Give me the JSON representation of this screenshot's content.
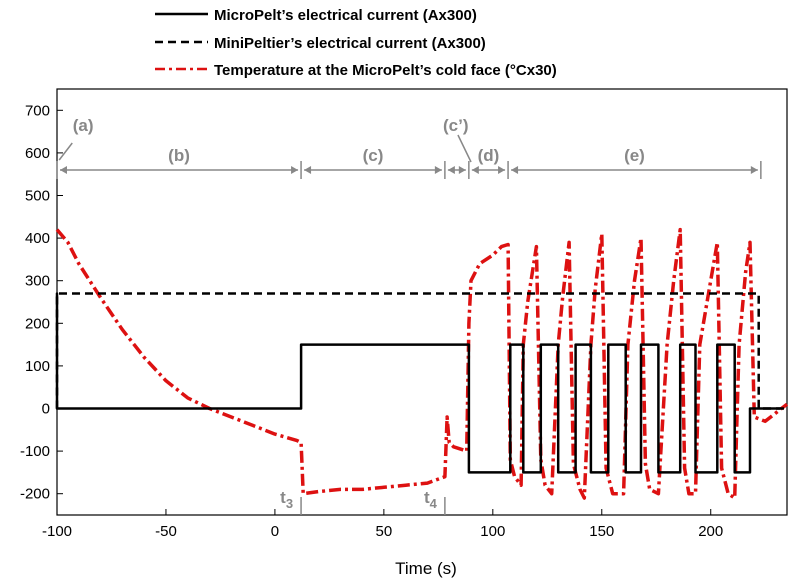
{
  "chart_data": {
    "type": "line",
    "title": "",
    "xlabel": "Time (s)",
    "ylabel": "",
    "xlim": [
      -100,
      235
    ],
    "ylim": [
      -250,
      750
    ],
    "xticks": [
      -100,
      -50,
      0,
      50,
      100,
      150,
      200
    ],
    "yticks": [
      -200,
      -100,
      0,
      100,
      200,
      300,
      400,
      500,
      600,
      700
    ],
    "xtick_labels": [
      "-100",
      "-50",
      "0",
      "50",
      "100",
      "150",
      "200"
    ],
    "ytick_labels": [
      "-200",
      "-100",
      "0",
      "100",
      "200",
      "300",
      "400",
      "500",
      "600",
      "700"
    ],
    "grid": false,
    "legend": {
      "placement": "top-outside",
      "entries": [
        {
          "label": "MicroPelt’s electrical current (Ax300)",
          "style": "solid",
          "color": "#000000"
        },
        {
          "label": "MiniPeltier’s electrical current  (Ax300)",
          "style": "dashed",
          "color": "#000000"
        },
        {
          "label": "Temperature at the MicroPelt’s cold face (°Cx30)",
          "style": "dashdot",
          "color": "#dd1111"
        }
      ]
    },
    "series": [
      {
        "name": "MicroPelt’s electrical current (Ax300)",
        "color": "#000000",
        "style": "solid",
        "x": [
          -100,
          -100,
          -100,
          12,
          12,
          89,
          89,
          108,
          108,
          114,
          114,
          122,
          122,
          130,
          130,
          138,
          138,
          145,
          145,
          153,
          153,
          161,
          161,
          168,
          168,
          176,
          176,
          186,
          186,
          193,
          193,
          203,
          203,
          211,
          211,
          218,
          218,
          232
        ],
        "y": [
          0,
          270,
          0,
          0,
          150,
          150,
          -150,
          -150,
          150,
          150,
          -150,
          -150,
          150,
          150,
          -150,
          -150,
          150,
          150,
          -150,
          -150,
          150,
          150,
          -150,
          -150,
          150,
          150,
          -150,
          -150,
          150,
          150,
          -150,
          -150,
          150,
          150,
          -150,
          -150,
          0,
          0
        ]
      },
      {
        "name": "MiniPeltier’s electrical current  (Ax300)",
        "color": "#000000",
        "style": "dashed",
        "x": [
          -100,
          -100,
          222,
          222,
          235
        ],
        "y": [
          0,
          270,
          270,
          0,
          0
        ]
      },
      {
        "name": "Temperature at the MicroPelt’s cold face (°Cx30)",
        "color": "#dd1111",
        "style": "dashdot",
        "x": [
          -100,
          -95,
          -90,
          -80,
          -70,
          -60,
          -50,
          -40,
          -30,
          -20,
          -10,
          0,
          10,
          12,
          13,
          20,
          30,
          40,
          50,
          60,
          70,
          78,
          79,
          80,
          82,
          88,
          89,
          90,
          94,
          100,
          104,
          107,
          108,
          110,
          113,
          114,
          116,
          120,
          122,
          124,
          127,
          130,
          132,
          135,
          137,
          140,
          142,
          145,
          147,
          150,
          152,
          155,
          160,
          162,
          165,
          168,
          170,
          172,
          176,
          180,
          183,
          186,
          188,
          190,
          193,
          195,
          200,
          203,
          205,
          208,
          211,
          213,
          216,
          218,
          220,
          225,
          235
        ],
        "y": [
          420,
          390,
          340,
          260,
          185,
          120,
          65,
          25,
          0,
          -20,
          -40,
          -60,
          -75,
          -80,
          -200,
          -195,
          -190,
          -190,
          -185,
          -180,
          -175,
          -160,
          -20,
          -80,
          -90,
          -100,
          200,
          300,
          340,
          360,
          380,
          385,
          -120,
          -160,
          -180,
          150,
          250,
          380,
          -120,
          -180,
          -200,
          150,
          260,
          390,
          -130,
          -190,
          -210,
          150,
          280,
          410,
          -140,
          -200,
          -200,
          150,
          300,
          400,
          -130,
          -190,
          -200,
          150,
          300,
          420,
          -140,
          -200,
          -200,
          150,
          300,
          390,
          -140,
          -200,
          -210,
          150,
          320,
          390,
          -20,
          -30,
          10
        ]
      }
    ],
    "annotations": {
      "phase_labels": [
        "(a)",
        "(b)",
        "(c)",
        "(c’)",
        "(d)",
        "(e)"
      ],
      "time_marks": [
        {
          "label": "t",
          "sub": "3",
          "x": 12
        },
        {
          "label": "t",
          "sub": "4",
          "x": 78
        }
      ],
      "phase_boundaries": [
        -100,
        12,
        78,
        89,
        107,
        223
      ]
    }
  }
}
